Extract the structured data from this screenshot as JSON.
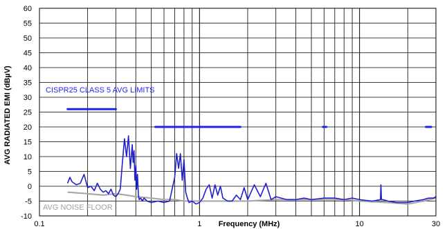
{
  "chart_data": {
    "type": "line",
    "title": "",
    "xlabel": "Frequency (MHz)",
    "ylabel": "AVG RADIATED EMI (dBµV)",
    "x_scale": "log",
    "xlim": [
      0.1,
      30
    ],
    "ylim": [
      -10,
      60
    ],
    "grid": true,
    "x_tick_labels": [
      "0.1",
      "1",
      "10",
      "30"
    ],
    "y_tick_labels": [
      "60",
      "55",
      "50",
      "45",
      "40",
      "35",
      "30",
      "25",
      "20",
      "15",
      "10",
      "5",
      "0",
      "-5",
      "-10"
    ],
    "annotations": [
      {
        "text": "CISPR25 CLASS 5 AVG LIMITS",
        "color": "#1f1fff"
      },
      {
        "text": "AVG NOISE FLOOR",
        "color": "#a0a0a0"
      }
    ],
    "colors": {
      "emission": "#1f1fcc",
      "limits": "#1f1fee",
      "noise_floor": "#a8a8a8",
      "grid": "#000000"
    },
    "series": [
      {
        "role": "limit",
        "segments": [
          {
            "x": [
              0.15,
              0.3
            ],
            "y": [
              26,
              26
            ]
          },
          {
            "x": [
              0.53,
              1.8
            ],
            "y": [
              20,
              20
            ]
          },
          {
            "x": [
              5.9,
              6.2
            ],
            "y": [
              20,
              20
            ]
          },
          {
            "x": [
              26,
              28
            ],
            "y": [
              20,
              20
            ]
          }
        ]
      },
      {
        "role": "noise_floor",
        "x": [
          0.15,
          0.2,
          0.25,
          0.3,
          0.35,
          0.4,
          0.5,
          0.6,
          0.7,
          0.8,
          1.0,
          1.5,
          2,
          3,
          5,
          8,
          10,
          15,
          20,
          25,
          30
        ],
        "y": [
          -2.0,
          -2.5,
          -3.0,
          -2.5,
          -3.0,
          -3.5,
          -4.0,
          -4.5,
          -4.5,
          -5.0,
          -5.0,
          -5.0,
          -5.0,
          -4.5,
          -4.5,
          -4.5,
          -5.0,
          -5.5,
          -6.0,
          -5.0,
          -4.0
        ]
      },
      {
        "role": "emission",
        "x": [
          0.15,
          0.155,
          0.16,
          0.17,
          0.18,
          0.19,
          0.2,
          0.21,
          0.22,
          0.23,
          0.24,
          0.25,
          0.26,
          0.27,
          0.28,
          0.29,
          0.3,
          0.31,
          0.32,
          0.33,
          0.34,
          0.35,
          0.36,
          0.37,
          0.38,
          0.385,
          0.39,
          0.395,
          0.4,
          0.405,
          0.41,
          0.415,
          0.42,
          0.43,
          0.44,
          0.45,
          0.47,
          0.5,
          0.55,
          0.6,
          0.65,
          0.7,
          0.72,
          0.74,
          0.76,
          0.78,
          0.8,
          0.82,
          0.84,
          0.86,
          0.9,
          0.95,
          1.0,
          1.05,
          1.1,
          1.15,
          1.2,
          1.25,
          1.3,
          1.35,
          1.4,
          1.5,
          1.6,
          1.7,
          1.8,
          1.9,
          2.0,
          2.2,
          2.4,
          2.6,
          2.8,
          3.0,
          3.5,
          4.0,
          4.5,
          5.0,
          6.0,
          7.0,
          8.0,
          9.0,
          10.0,
          12.0,
          13.5,
          13.6,
          13.7,
          14.0,
          15.0,
          17.0,
          20.0,
          22.0,
          25.0,
          27.0,
          29.0,
          30.0
        ],
        "y": [
          1.0,
          3.0,
          1.5,
          0.5,
          1.0,
          4.0,
          -0.5,
          0.0,
          -1.5,
          1.0,
          -1.0,
          -2.0,
          -1.5,
          -2.5,
          -1.0,
          -3.0,
          -3.5,
          -2.5,
          -1.0,
          8.0,
          16.0,
          10.0,
          17.0,
          6.0,
          14.0,
          8.0,
          12.0,
          2.0,
          7.0,
          -1.0,
          4.0,
          -3.0,
          -4.5,
          -4.0,
          -5.0,
          -4.0,
          -5.0,
          -5.5,
          -5.0,
          -5.5,
          -5.0,
          3.0,
          11.0,
          6.0,
          11.0,
          2.0,
          9.0,
          -2.0,
          -4.0,
          -5.5,
          -5.0,
          -6.0,
          -5.5,
          -4.0,
          -1.0,
          0.5,
          -4.0,
          0.5,
          -3.0,
          0.0,
          -4.0,
          -5.0,
          -5.0,
          -3.0,
          -4.5,
          -0.5,
          -4.5,
          0.5,
          -3.5,
          1.0,
          -4.5,
          -3.5,
          -4.5,
          -4.5,
          -4.0,
          -4.5,
          -4.0,
          -4.0,
          -4.5,
          -4.0,
          -4.5,
          -5.0,
          -4.5,
          0.5,
          -4.5,
          -4.5,
          -5.0,
          -5.5,
          -5.5,
          -5.0,
          -4.5,
          -4.0,
          -4.0,
          -3.5
        ]
      }
    ]
  }
}
